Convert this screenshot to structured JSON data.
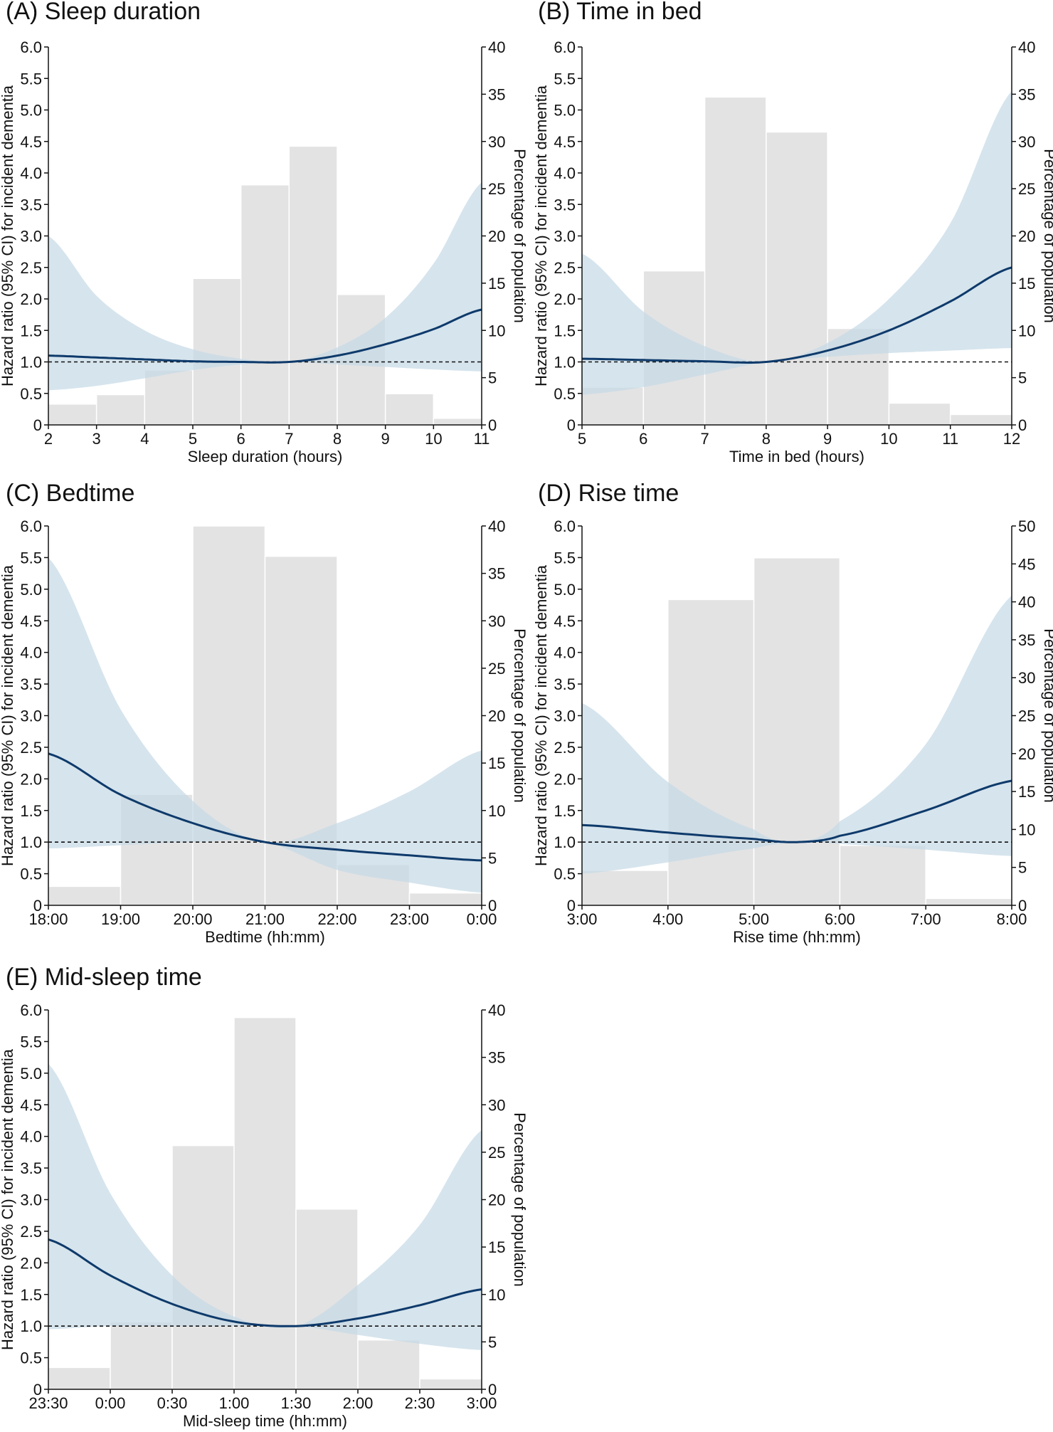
{
  "figure": {
    "y_label_left": "Hazard ratio (95% CI) for incident dementia",
    "y_label_right": "Percentage of population"
  },
  "colors": {
    "bar": "#e3e3e3",
    "ci_band": "#c6d9e6",
    "curve": "#0e3a6b",
    "ref_line": "#111111"
  },
  "chart_data": [
    {
      "id": "A",
      "type": "line+bar",
      "title": "(A) Sleep duration",
      "xlabel": "Sleep duration (hours)",
      "ylabel": "Hazard ratio (95% CI) for incident dementia",
      "ylabel_right": "Percentage of population",
      "xlim": [
        2,
        11
      ],
      "x_ticks": [
        2,
        3,
        4,
        5,
        6,
        7,
        8,
        9,
        10,
        11
      ],
      "x_tick_labels": [
        "2",
        "3",
        "4",
        "5",
        "6",
        "7",
        "8",
        "9",
        "10",
        "11"
      ],
      "ylim": [
        0,
        6
      ],
      "y_ticks": [
        0,
        0.5,
        1.0,
        1.5,
        2.0,
        2.5,
        3.0,
        3.5,
        4.0,
        4.5,
        5.0,
        5.5,
        6.0
      ],
      "y_tick_labels": [
        "0",
        "0.5",
        "1.0",
        "1.5",
        "2.0",
        "2.5",
        "3.0",
        "3.5",
        "4.0",
        "4.5",
        "5.0",
        "5.5",
        "6.0"
      ],
      "y2lim": [
        0,
        40
      ],
      "y2_ticks": [
        0,
        5,
        10,
        15,
        20,
        25,
        30,
        35,
        40
      ],
      "reference_line": 1.0,
      "bars": {
        "edges": [
          2,
          3,
          4,
          5,
          6,
          7,
          8,
          9,
          10,
          11
        ],
        "percent": [
          2.2,
          3.2,
          5.8,
          15.5,
          25.4,
          29.5,
          13.8,
          3.3,
          0.7
        ]
      },
      "hr_curve": {
        "x": [
          2,
          3,
          4,
          5,
          6,
          7,
          8,
          9,
          10,
          11
        ],
        "hr": [
          1.1,
          1.07,
          1.04,
          1.01,
          1.0,
          1.0,
          1.1,
          1.28,
          1.52,
          1.83
        ],
        "lower": [
          0.55,
          0.62,
          0.74,
          0.87,
          0.96,
          1.0,
          0.96,
          0.92,
          0.88,
          0.85
        ],
        "upper": [
          3.0,
          2.05,
          1.5,
          1.2,
          1.05,
          1.0,
          1.23,
          1.7,
          2.56,
          3.85
        ]
      }
    },
    {
      "id": "B",
      "type": "line+bar",
      "title": "(B) Time in bed",
      "xlabel": "Time in bed (hours)",
      "ylabel": "Hazard ratio (95% CI) for incident dementia",
      "ylabel_right": "Percentage of population",
      "xlim": [
        5,
        12
      ],
      "x_ticks": [
        5,
        6,
        7,
        8,
        9,
        10,
        11,
        12
      ],
      "x_tick_labels": [
        "5",
        "6",
        "7",
        "8",
        "9",
        "10",
        "11",
        "12"
      ],
      "ylim": [
        0,
        6
      ],
      "y_ticks": [
        0,
        0.5,
        1.0,
        1.5,
        2.0,
        2.5,
        3.0,
        3.5,
        4.0,
        4.5,
        5.0,
        5.5,
        6.0
      ],
      "y_tick_labels": [
        "0",
        "0.5",
        "1.0",
        "1.5",
        "2.0",
        "2.5",
        "3.0",
        "3.5",
        "4.0",
        "4.5",
        "5.0",
        "5.5",
        "6.0"
      ],
      "y2lim": [
        0,
        40
      ],
      "y2_ticks": [
        0,
        5,
        10,
        15,
        20,
        25,
        30,
        35,
        40
      ],
      "reference_line": 1.0,
      "bars": {
        "edges": [
          5,
          6,
          7,
          8,
          9,
          10,
          11,
          12
        ],
        "percent": [
          4.0,
          16.3,
          34.7,
          31.0,
          10.2,
          2.3,
          1.1
        ]
      },
      "hr_curve": {
        "x": [
          5,
          6,
          7,
          8,
          9,
          10,
          11,
          12
        ],
        "hr": [
          1.05,
          1.03,
          1.01,
          1.0,
          1.18,
          1.5,
          1.96,
          2.5
        ],
        "lower": [
          0.48,
          0.6,
          0.8,
          1.0,
          1.08,
          1.14,
          1.18,
          1.22
        ],
        "upper": [
          2.72,
          1.8,
          1.25,
          1.0,
          1.3,
          2.0,
          3.2,
          5.3
        ]
      }
    },
    {
      "id": "C",
      "type": "line+bar",
      "title": "(C) Bedtime",
      "xlabel": "Bedtime (hh:mm)",
      "ylabel": "Hazard ratio (95% CI) for incident dementia",
      "ylabel_right": "Percentage of population",
      "xlim": [
        18,
        24
      ],
      "x_ticks": [
        18,
        19,
        20,
        21,
        22,
        23,
        24
      ],
      "x_tick_labels": [
        "18:00",
        "19:00",
        "20:00",
        "21:00",
        "22:00",
        "23:00",
        "0:00"
      ],
      "ylim": [
        0,
        6
      ],
      "y_ticks": [
        0,
        0.5,
        1.0,
        1.5,
        2.0,
        2.5,
        3.0,
        3.5,
        4.0,
        4.5,
        5.0,
        5.5,
        6.0
      ],
      "y_tick_labels": [
        "0",
        "0.5",
        "1.0",
        "1.5",
        "2.0",
        "2.5",
        "3.0",
        "3.5",
        "4.0",
        "4.5",
        "5.0",
        "5.5",
        "6.0"
      ],
      "y2lim": [
        0,
        40
      ],
      "y2_ticks": [
        0,
        5,
        10,
        15,
        20,
        25,
        30,
        35,
        40
      ],
      "reference_line": 1.0,
      "bars": {
        "edges": [
          18,
          19,
          20,
          21,
          22,
          23,
          24
        ],
        "percent": [
          2.0,
          11.7,
          40.0,
          36.8,
          4.3,
          1.3
        ]
      },
      "hr_curve": {
        "x": [
          18,
          19,
          20,
          21,
          22,
          23,
          24
        ],
        "hr": [
          2.4,
          1.75,
          1.3,
          1.0,
          0.88,
          0.79,
          0.71
        ],
        "lower": [
          0.9,
          0.95,
          1.0,
          1.0,
          0.56,
          0.36,
          0.2
        ],
        "upper": [
          5.5,
          3.1,
          1.65,
          1.0,
          1.3,
          1.8,
          2.45
        ]
      }
    },
    {
      "id": "D",
      "type": "line+bar",
      "title": "(D) Rise time",
      "xlabel": "Rise time (hh:mm)",
      "ylabel": "Hazard ratio (95% CI) for incident dementia",
      "ylabel_right": "Percentage of population",
      "xlim": [
        3,
        8
      ],
      "x_ticks": [
        3,
        4,
        5,
        6,
        7,
        8
      ],
      "x_tick_labels": [
        "3:00",
        "4:00",
        "5:00",
        "6:00",
        "7:00",
        "8:00"
      ],
      "ylim": [
        0,
        6
      ],
      "y_ticks": [
        0,
        0.5,
        1.0,
        1.5,
        2.0,
        2.5,
        3.0,
        3.5,
        4.0,
        4.5,
        5.0,
        5.5,
        6.0
      ],
      "y_tick_labels": [
        "0",
        "0.5",
        "1.0",
        "1.5",
        "2.0",
        "2.5",
        "3.0",
        "3.5",
        "4.0",
        "4.5",
        "5.0",
        "5.5",
        "6.0"
      ],
      "y2lim": [
        0,
        50
      ],
      "y2_ticks": [
        0,
        5,
        10,
        15,
        20,
        25,
        30,
        35,
        40,
        45,
        50
      ],
      "reference_line": 1.0,
      "bars": {
        "edges": [
          3,
          4,
          5,
          6,
          7,
          8
        ],
        "percent": [
          4.6,
          40.3,
          45.8,
          7.9,
          0.9
        ]
      },
      "hr_curve": {
        "x": [
          3,
          4,
          5,
          5.5,
          6,
          7,
          8
        ],
        "hr": [
          1.27,
          1.15,
          1.05,
          1.0,
          1.1,
          1.5,
          1.97
        ],
        "lower": [
          0.5,
          0.68,
          0.9,
          1.0,
          0.97,
          0.88,
          0.78
        ],
        "upper": [
          3.2,
          1.95,
          1.2,
          1.0,
          1.33,
          2.55,
          4.9
        ]
      }
    },
    {
      "id": "E",
      "type": "line+bar",
      "title": "(E) Mid-sleep time",
      "xlabel": "Mid-sleep time (hh:mm)",
      "ylabel": "Hazard ratio (95% CI) for incident dementia",
      "ylabel_right": "Percentage of population",
      "xlim": [
        -0.5,
        3
      ],
      "x_ticks": [
        -0.5,
        0,
        0.5,
        1,
        1.5,
        2,
        2.5,
        3
      ],
      "x_tick_labels": [
        "23:30",
        "0:00",
        "0:30",
        "1:00",
        "1:30",
        "2:00",
        "2:30",
        "3:00"
      ],
      "ylim": [
        0,
        6
      ],
      "y_ticks": [
        0,
        0.5,
        1.0,
        1.5,
        2.0,
        2.5,
        3.0,
        3.5,
        4.0,
        4.5,
        5.0,
        5.5,
        6.0
      ],
      "y_tick_labels": [
        "0",
        "0.5",
        "1.0",
        "1.5",
        "2.0",
        "2.5",
        "3.0",
        "3.5",
        "4.0",
        "4.5",
        "5.0",
        "5.5",
        "6.0"
      ],
      "y2lim": [
        0,
        40
      ],
      "y2_ticks": [
        0,
        5,
        10,
        15,
        20,
        25,
        30,
        35,
        40
      ],
      "reference_line": 1.0,
      "bars": {
        "edges": [
          -0.5,
          0,
          0.5,
          1,
          1.5,
          2,
          2.5,
          3
        ],
        "percent": [
          2.3,
          7.1,
          25.7,
          39.2,
          19.0,
          5.2,
          1.1
        ]
      },
      "hr_curve": {
        "x": [
          -0.5,
          0,
          0.5,
          1,
          1.5,
          2,
          2.5,
          3
        ],
        "hr": [
          2.37,
          1.8,
          1.35,
          1.07,
          1.0,
          1.12,
          1.33,
          1.58
        ],
        "lower": [
          0.95,
          1.0,
          1.0,
          1.0,
          1.0,
          0.86,
          0.72,
          0.62
        ],
        "upper": [
          5.15,
          3.1,
          1.8,
          1.15,
          1.0,
          1.65,
          2.6,
          4.1
        ]
      }
    }
  ]
}
